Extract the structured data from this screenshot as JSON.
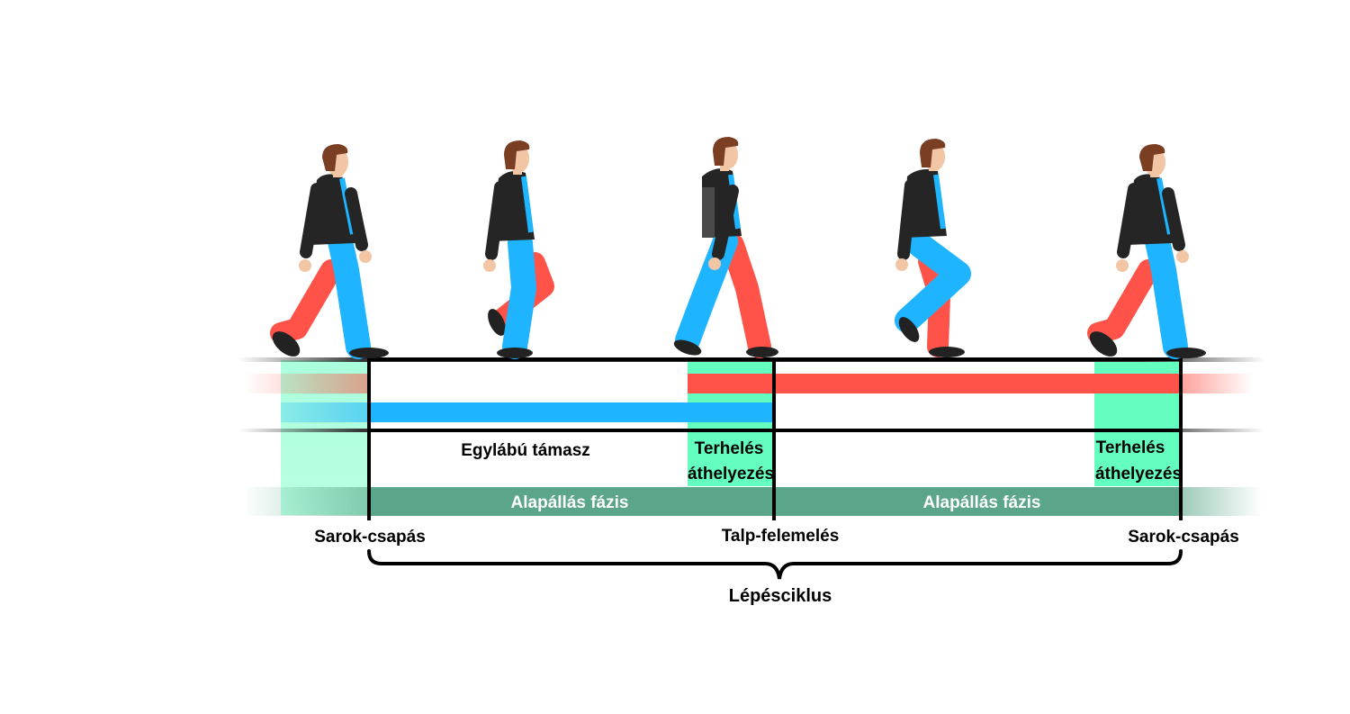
{
  "colors": {
    "left_leg": "#ff5349",
    "right_leg": "#1fb4ff",
    "weight_transfer": "#64ffbf",
    "stance_phase": "#5ba68a",
    "frame": "#000000",
    "shirt": "#252525",
    "skin": "#f2c5a4",
    "hair": "#7a3e22"
  },
  "figures": {
    "count": 5,
    "icon": "walking-man-icon"
  },
  "labels": {
    "single_support": "Egylábú támasz",
    "weight_transfer_1": [
      "Terhelés",
      "áthelyezés"
    ],
    "weight_transfer_2": [
      "Terhelés",
      "áthelyezés"
    ],
    "stance_phase_1": "Alapállás fázis",
    "stance_phase_2": "Alapállás fázis",
    "event_heel_strike_start": "Sarok-csapás",
    "event_toe_off": "Talp-felemelés",
    "event_heel_strike_end": "Sarok-csapás",
    "gait_cycle": "Lépésciklus"
  }
}
